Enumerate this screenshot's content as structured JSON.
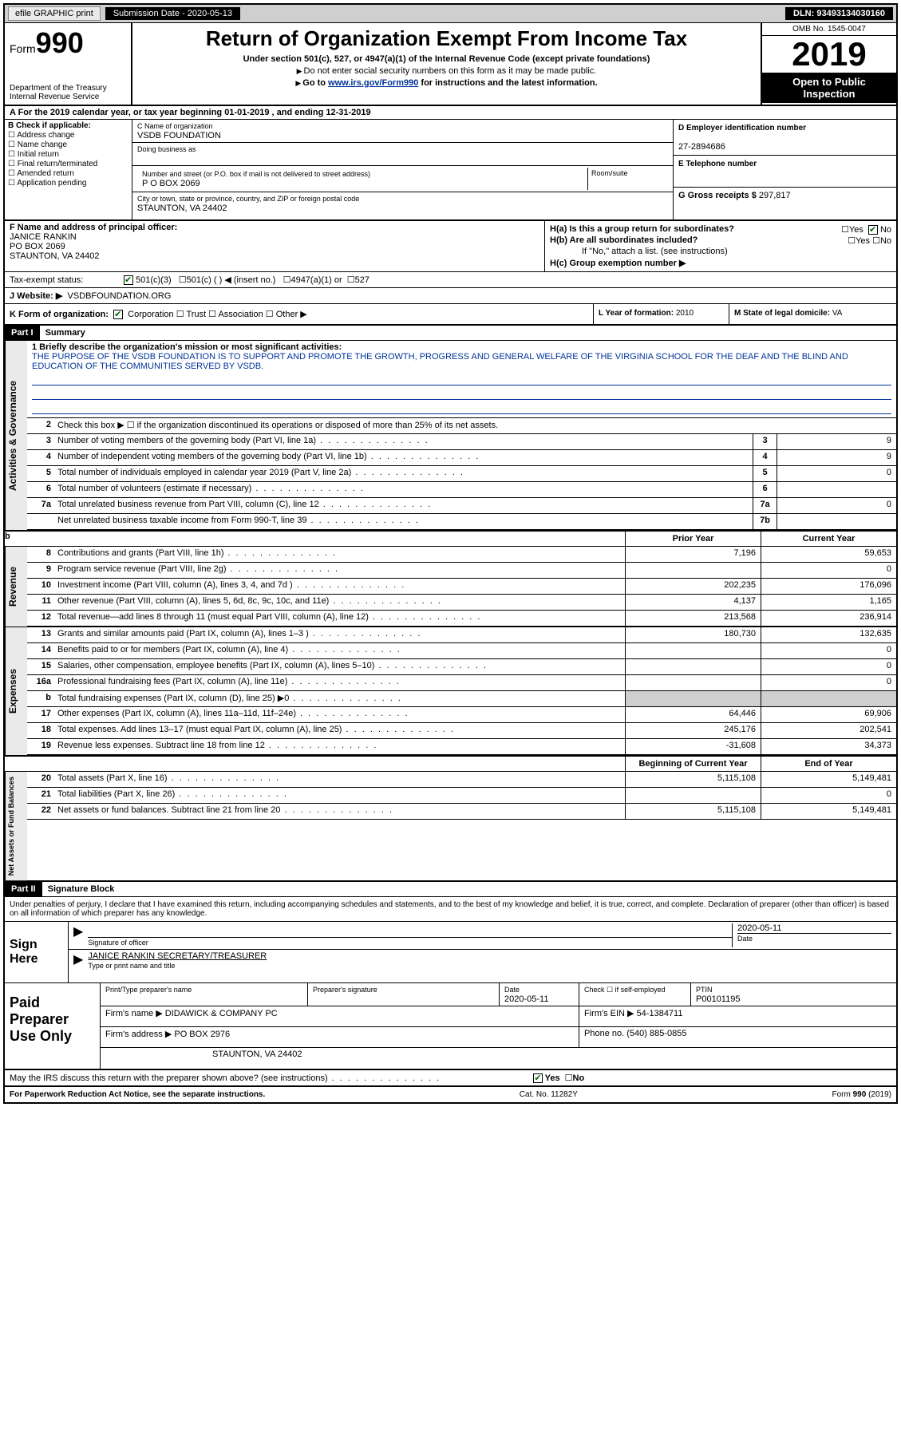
{
  "colors": {
    "header_bg": "#cfcfcf",
    "black": "#000000",
    "link": "#003399",
    "shade": "#cfcfcf",
    "check_green": "#006600"
  },
  "topbar": {
    "efile": "efile GRAPHIC print",
    "sub_label": "Submission Date - 2020-05-13",
    "dln": "DLN: 93493134030160"
  },
  "header": {
    "form_prefix": "Form",
    "form_num": "990",
    "dept": "Department of the Treasury\nInternal Revenue Service",
    "title": "Return of Organization Exempt From Income Tax",
    "subtitle": "Under section 501(c), 527, or 4947(a)(1) of the Internal Revenue Code (except private foundations)",
    "note1": "Do not enter social security numbers on this form as it may be made public.",
    "note2_pre": "Go to ",
    "note2_link": "www.irs.gov/Form990",
    "note2_post": " for instructions and the latest information.",
    "omb": "OMB No. 1545-0047",
    "year": "2019",
    "open": "Open to Public Inspection"
  },
  "row_a": "A For the 2019 calendar year, or tax year beginning 01-01-2019   , and ending 12-31-2019",
  "col_b": {
    "hdr": "B Check if applicable:",
    "items": [
      "Address change",
      "Name change",
      "Initial return",
      "Final return/terminated",
      "Amended return",
      "Application pending"
    ]
  },
  "col_c": {
    "name_lbl": "C Name of organization",
    "name": "VSDB FOUNDATION",
    "dba_lbl": "Doing business as",
    "addr_lbl": "Number and street (or P.O. box if mail is not delivered to street address)",
    "addr": "P O BOX 2069",
    "room_lbl": "Room/suite",
    "city_lbl": "City or town, state or province, country, and ZIP or foreign postal code",
    "city": "STAUNTON, VA  24402"
  },
  "col_d": {
    "lbl": "D Employer identification number",
    "val": "27-2894686"
  },
  "col_e": {
    "lbl": "E Telephone number",
    "val": ""
  },
  "col_g": {
    "lbl": "G Gross receipts $",
    "val": "297,817"
  },
  "col_f": {
    "lbl": "F  Name and address of principal officer:",
    "name": "JANICE RANKIN",
    "addr1": "PO BOX 2069",
    "addr2": "STAUNTON, VA  24402"
  },
  "col_h": {
    "a": "H(a)  Is this a group return for subordinates?",
    "b": "H(b)  Are all subordinates included?",
    "b_note": "If \"No,\" attach a list. (see instructions)",
    "c": "H(c)  Group exemption number ▶",
    "yes": "Yes",
    "no": "No"
  },
  "row_i": {
    "lbl": "Tax-exempt status:",
    "opt1": "501(c)(3)",
    "opt2": "501(c) (  ) ◀ (insert no.)",
    "opt3": "4947(a)(1) or",
    "opt4": "527"
  },
  "row_j": {
    "lbl": "J   Website: ▶",
    "val": "VSDBFOUNDATION.ORG"
  },
  "row_k": {
    "lbl": "K Form of organization:",
    "opts": [
      "Corporation",
      "Trust",
      "Association",
      "Other ▶"
    ],
    "l_lbl": "L Year of formation:",
    "l_val": "2010",
    "m_lbl": "M State of legal domicile:",
    "m_val": "VA"
  },
  "part1": {
    "hdr": "Part I",
    "title": "Summary",
    "l1_lbl": "1  Briefly describe the organization's mission or most significant activities:",
    "l1_text": "THE PURPOSE OF THE VSDB FOUNDATION IS TO SUPPORT AND PROMOTE THE GROWTH, PROGRESS AND GENERAL WELFARE OF THE VIRGINIA SCHOOL FOR THE DEAF AND THE BLIND AND EDUCATION OF THE COMMUNITIES SERVED BY VSDB.",
    "l2": "Check this box ▶ ☐  if the organization discontinued its operations or disposed of more than 25% of its net assets.",
    "sections": {
      "gov": "Activities & Governance",
      "rev": "Revenue",
      "exp": "Expenses",
      "net": "Net Assets or Fund Balances"
    },
    "lines_gov": [
      {
        "n": "3",
        "d": "Number of voting members of the governing body (Part VI, line 1a)",
        "box": "3",
        "v": "9"
      },
      {
        "n": "4",
        "d": "Number of independent voting members of the governing body (Part VI, line 1b)",
        "box": "4",
        "v": "9"
      },
      {
        "n": "5",
        "d": "Total number of individuals employed in calendar year 2019 (Part V, line 2a)",
        "box": "5",
        "v": "0"
      },
      {
        "n": "6",
        "d": "Total number of volunteers (estimate if necessary)",
        "box": "6",
        "v": ""
      },
      {
        "n": "7a",
        "d": "Total unrelated business revenue from Part VIII, column (C), line 12",
        "box": "7a",
        "v": "0"
      },
      {
        "n": "",
        "d": "Net unrelated business taxable income from Form 990-T, line 39",
        "box": "7b",
        "v": ""
      }
    ],
    "prior_hdr": "Prior Year",
    "curr_hdr": "Current Year",
    "lines_rev": [
      {
        "n": "8",
        "d": "Contributions and grants (Part VIII, line 1h)",
        "p": "7,196",
        "c": "59,653"
      },
      {
        "n": "9",
        "d": "Program service revenue (Part VIII, line 2g)",
        "p": "",
        "c": "0"
      },
      {
        "n": "10",
        "d": "Investment income (Part VIII, column (A), lines 3, 4, and 7d )",
        "p": "202,235",
        "c": "176,096"
      },
      {
        "n": "11",
        "d": "Other revenue (Part VIII, column (A), lines 5, 6d, 8c, 9c, 10c, and 11e)",
        "p": "4,137",
        "c": "1,165"
      },
      {
        "n": "12",
        "d": "Total revenue—add lines 8 through 11 (must equal Part VIII, column (A), line 12)",
        "p": "213,568",
        "c": "236,914"
      }
    ],
    "lines_exp": [
      {
        "n": "13",
        "d": "Grants and similar amounts paid (Part IX, column (A), lines 1–3 )",
        "p": "180,730",
        "c": "132,635"
      },
      {
        "n": "14",
        "d": "Benefits paid to or for members (Part IX, column (A), line 4)",
        "p": "",
        "c": "0"
      },
      {
        "n": "15",
        "d": "Salaries, other compensation, employee benefits (Part IX, column (A), lines 5–10)",
        "p": "",
        "c": "0"
      },
      {
        "n": "16a",
        "d": "Professional fundraising fees (Part IX, column (A), line 11e)",
        "p": "",
        "c": "0"
      },
      {
        "n": "b",
        "d": "Total fundraising expenses (Part IX, column (D), line 25) ▶0",
        "p": "shade",
        "c": "shade"
      },
      {
        "n": "17",
        "d": "Other expenses (Part IX, column (A), lines 11a–11d, 11f–24e)",
        "p": "64,446",
        "c": "69,906"
      },
      {
        "n": "18",
        "d": "Total expenses. Add lines 13–17 (must equal Part IX, column (A), line 25)",
        "p": "245,176",
        "c": "202,541"
      },
      {
        "n": "19",
        "d": "Revenue less expenses. Subtract line 18 from line 12",
        "p": "-31,608",
        "c": "34,373"
      }
    ],
    "net_prior_hdr": "Beginning of Current Year",
    "net_curr_hdr": "End of Year",
    "lines_net": [
      {
        "n": "20",
        "d": "Total assets (Part X, line 16)",
        "p": "5,115,108",
        "c": "5,149,481"
      },
      {
        "n": "21",
        "d": "Total liabilities (Part X, line 26)",
        "p": "",
        "c": "0"
      },
      {
        "n": "22",
        "d": "Net assets or fund balances. Subtract line 21 from line 20",
        "p": "5,115,108",
        "c": "5,149,481"
      }
    ]
  },
  "part2": {
    "hdr": "Part II",
    "title": "Signature Block",
    "decl": "Under penalties of perjury, I declare that I have examined this return, including accompanying schedules and statements, and to the best of my knowledge and belief, it is true, correct, and complete. Declaration of preparer (other than officer) is based on all information of which preparer has any knowledge.",
    "sign_here": "Sign Here",
    "sig_officer": "Signature of officer",
    "sig_date": "2020-05-11",
    "date_lbl": "Date",
    "officer_name": "JANICE RANKIN  SECRETARY/TREASURER",
    "type_lbl": "Type or print name and title",
    "paid": "Paid Preparer Use Only",
    "p_name_lbl": "Print/Type preparer's name",
    "p_sig_lbl": "Preparer's signature",
    "p_date_lbl": "Date",
    "p_date": "2020-05-11",
    "p_check_lbl": "Check ☐ if self-employed",
    "ptin_lbl": "PTIN",
    "ptin": "P00101195",
    "firm_name_lbl": "Firm's name    ▶",
    "firm_name": "DIDAWICK & COMPANY PC",
    "firm_ein_lbl": "Firm's EIN ▶",
    "firm_ein": "54-1384711",
    "firm_addr_lbl": "Firm's address ▶",
    "firm_addr1": "PO BOX 2976",
    "firm_addr2": "STAUNTON, VA  24402",
    "phone_lbl": "Phone no.",
    "phone": "(540) 885-0855",
    "discuss": "May the IRS discuss this return with the preparer shown above? (see instructions)",
    "yes": "Yes",
    "no": "No"
  },
  "footer": {
    "left": "For Paperwork Reduction Act Notice, see the separate instructions.",
    "mid": "Cat. No. 11282Y",
    "right": "Form 990 (2019)"
  }
}
